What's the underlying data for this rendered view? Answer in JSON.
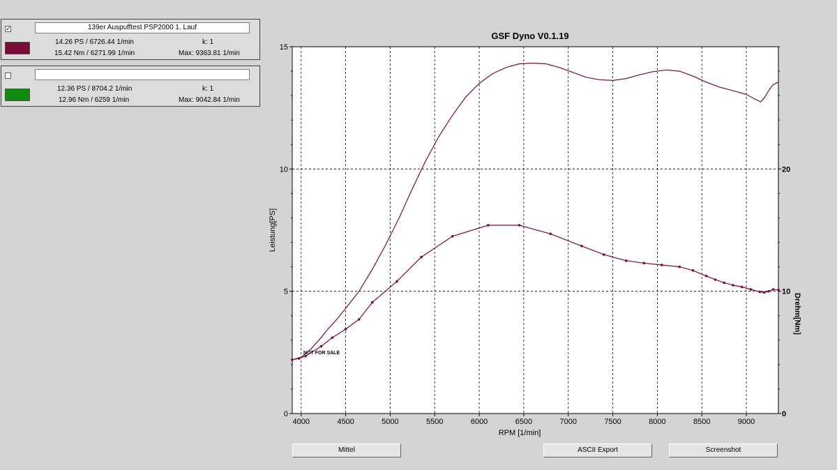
{
  "runs": [
    {
      "checked": "✓",
      "name": "139er Auspufftest PSP2000 1. Lauf",
      "color": "#7a0a3a",
      "power": "14.26 PS / 6726.44 1/min",
      "k": "k: 1",
      "torque": "15.42 Nm / 6271.99 1/min",
      "max": "Max: 9363.81 1/min"
    },
    {
      "checked": "",
      "name": "",
      "color": "#0f8a0f",
      "power": "12.36 PS / 8704.2 1/min",
      "k": "k: 1",
      "torque": "12.96 Nm / 6259 1/min",
      "max": "Max: 9042.84 1/min"
    }
  ],
  "plot": {
    "title": "GSF Dyno V0.1.19",
    "watermark": "NOT FOR SALE"
  },
  "buttons": {
    "mittel": "Mittel",
    "ascii": "ASCII Export",
    "screenshot": "Screenshot"
  },
  "chart_data": {
    "type": "line",
    "title": "GSF Dyno V0.1.19",
    "xlabel": "RPM [1/min]",
    "ylabel": "Leistung[PS]",
    "y2label": "Drehm[Nm]",
    "xlim": [
      3900,
      9360
    ],
    "ylim": [
      0,
      15
    ],
    "y2lim": [
      0,
      30
    ],
    "x_ticks": [
      4000,
      4500,
      5000,
      5500,
      6000,
      6500,
      7000,
      7500,
      8000,
      8500,
      9000
    ],
    "y_ticks": [
      0,
      5,
      10,
      15
    ],
    "y2_ticks": [
      0,
      10,
      20
    ],
    "grid": true,
    "series": [
      {
        "name": "139er Auspufftest PSP2000 1. Lauf",
        "axis": "left",
        "color": "#7a0a3a",
        "markers": false,
        "x": [
          3900,
          4000,
          4100,
          4200,
          4300,
          4400,
          4500,
          4650,
          4800,
          4950,
          5100,
          5250,
          5400,
          5550,
          5700,
          5850,
          6000,
          6150,
          6300,
          6450,
          6600,
          6750,
          6900,
          7050,
          7200,
          7350,
          7500,
          7650,
          7800,
          7950,
          8100,
          8250,
          8400,
          8550,
          8700,
          8850,
          9000,
          9100,
          9160,
          9200,
          9250,
          9300,
          9360
        ],
        "y": [
          2.2,
          2.3,
          2.6,
          3.0,
          3.45,
          3.85,
          4.3,
          5.0,
          5.9,
          6.9,
          8.0,
          9.2,
          10.35,
          11.35,
          12.2,
          12.95,
          13.5,
          13.9,
          14.15,
          14.3,
          14.33,
          14.3,
          14.15,
          13.95,
          13.75,
          13.65,
          13.62,
          13.7,
          13.85,
          13.98,
          14.05,
          14.0,
          13.8,
          13.55,
          13.35,
          13.2,
          13.05,
          12.85,
          12.75,
          12.9,
          13.2,
          13.45,
          13.55
        ]
      },
      {
        "name": "139er Auspufftest PSP2000 1. Lauf",
        "axis": "right",
        "color": "#7a0a3a",
        "markers": true,
        "x": [
          3900,
          3975,
          4050,
          4225,
          4350,
          4500,
          4650,
          4800,
          5075,
          5350,
          5700,
          6100,
          6450,
          6800,
          7150,
          7400,
          7650,
          7850,
          8050,
          8250,
          8400,
          8550,
          8650,
          8750,
          8850,
          8950,
          9050,
          9150,
          9200,
          9250,
          9300,
          9360
        ],
        "y": [
          4.4,
          4.5,
          4.7,
          5.5,
          6.2,
          6.9,
          7.7,
          9.1,
          10.8,
          12.8,
          14.5,
          15.4,
          15.4,
          14.7,
          13.7,
          13.0,
          12.5,
          12.3,
          12.15,
          12.0,
          11.7,
          11.25,
          10.95,
          10.7,
          10.5,
          10.35,
          10.15,
          9.95,
          9.9,
          10.0,
          10.15,
          10.1
        ]
      }
    ]
  }
}
